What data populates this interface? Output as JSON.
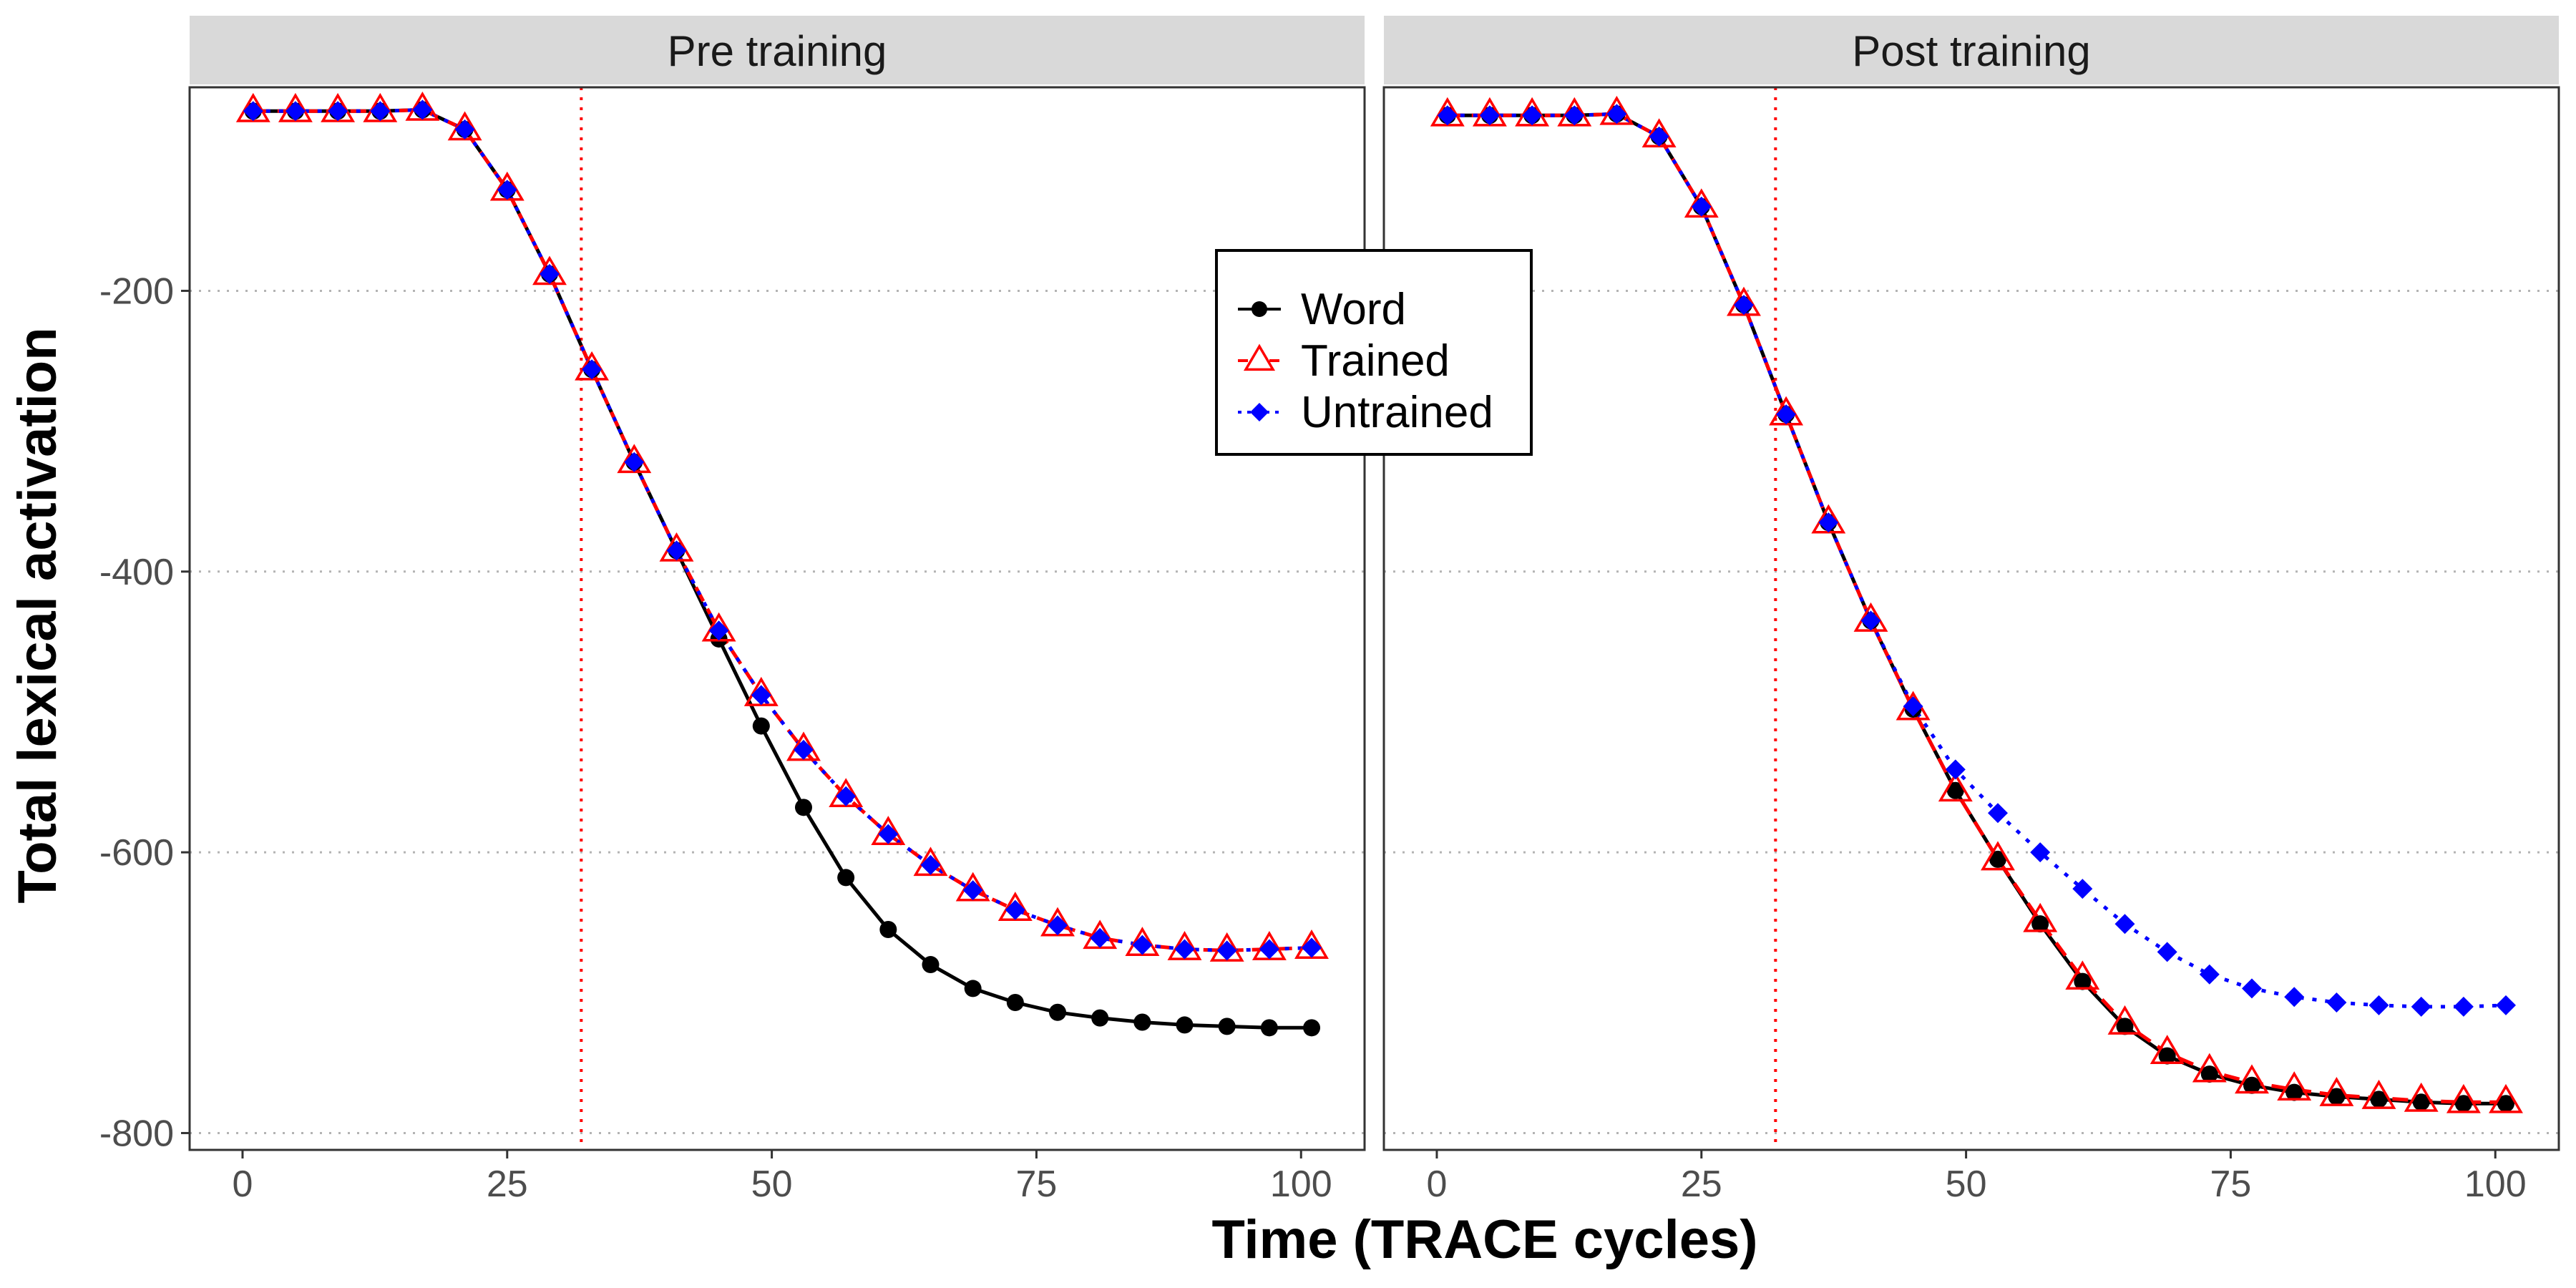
{
  "chart_data": {
    "type": "line",
    "xlabel": "Time (TRACE cycles)",
    "ylabel": "Total lexical activation",
    "xlim": [
      -5,
      106
    ],
    "ylim": [
      -812,
      -55
    ],
    "xticks": [
      0,
      25,
      50,
      75,
      100
    ],
    "yticks": [
      -800,
      -600,
      -400,
      -200
    ],
    "grid": "horizontal-dotted",
    "legend_position": "top-right of left panel",
    "guide_line_x": 32,
    "x": [
      1,
      5,
      9,
      13,
      17,
      21,
      25,
      29,
      33,
      37,
      41,
      45,
      49,
      53,
      57,
      61,
      65,
      69,
      73,
      77,
      81,
      85,
      89,
      93,
      97,
      101
    ],
    "panels": [
      {
        "title": "Pre training",
        "series": [
          {
            "name": "Word",
            "color": "#000000",
            "values": [
              -72,
              -72,
              -72,
              -72,
              -71,
              -85,
              -128,
              -188,
              -256,
              -322,
              -385,
              -448,
              -510,
              -568,
              -618,
              -655,
              -680,
              -697,
              -707,
              -714,
              -718,
              -721,
              -723,
              -724,
              -725,
              -725
            ]
          },
          {
            "name": "Trained",
            "color": "#ff0000",
            "values": [
              -72,
              -72,
              -72,
              -72,
              -71,
              -85,
              -128,
              -188,
              -256,
              -322,
              -385,
              -442,
              -488,
              -527,
              -560,
              -587,
              -609,
              -627,
              -641,
              -652,
              -661,
              -666,
              -669,
              -670,
              -669,
              -668
            ]
          },
          {
            "name": "Untrained",
            "color": "#0000ff",
            "values": [
              -72,
              -72,
              -72,
              -72,
              -71,
              -85,
              -128,
              -188,
              -256,
              -322,
              -385,
              -442,
              -488,
              -527,
              -560,
              -587,
              -609,
              -627,
              -641,
              -652,
              -661,
              -666,
              -669,
              -670,
              -669,
              -668
            ]
          }
        ]
      },
      {
        "title": "Post training",
        "series": [
          {
            "name": "Word",
            "color": "#000000",
            "values": [
              -75,
              -75,
              -75,
              -75,
              -74,
              -90,
              -140,
              -210,
              -288,
              -365,
              -435,
              -498,
              -556,
              -605,
              -651,
              -692,
              -724,
              -745,
              -758,
              -766,
              -771,
              -774,
              -776,
              -778,
              -779,
              -779
            ]
          },
          {
            "name": "Trained",
            "color": "#ff0000",
            "values": [
              -75,
              -75,
              -75,
              -75,
              -74,
              -90,
              -140,
              -210,
              -288,
              -365,
              -435,
              -498,
              -556,
              -605,
              -649,
              -690,
              -722,
              -743,
              -756,
              -764,
              -769,
              -773,
              -775,
              -777,
              -778,
              -778
            ]
          },
          {
            "name": "Untrained",
            "color": "#0000ff",
            "values": [
              -75,
              -75,
              -75,
              -75,
              -74,
              -90,
              -140,
              -210,
              -288,
              -365,
              -435,
              -496,
              -541,
              -572,
              -600,
              -626,
              -651,
              -671,
              -687,
              -697,
              -703,
              -707,
              -709,
              -710,
              -710,
              -709
            ]
          }
        ]
      }
    ],
    "legend": [
      "Word",
      "Trained",
      "Untrained"
    ]
  }
}
